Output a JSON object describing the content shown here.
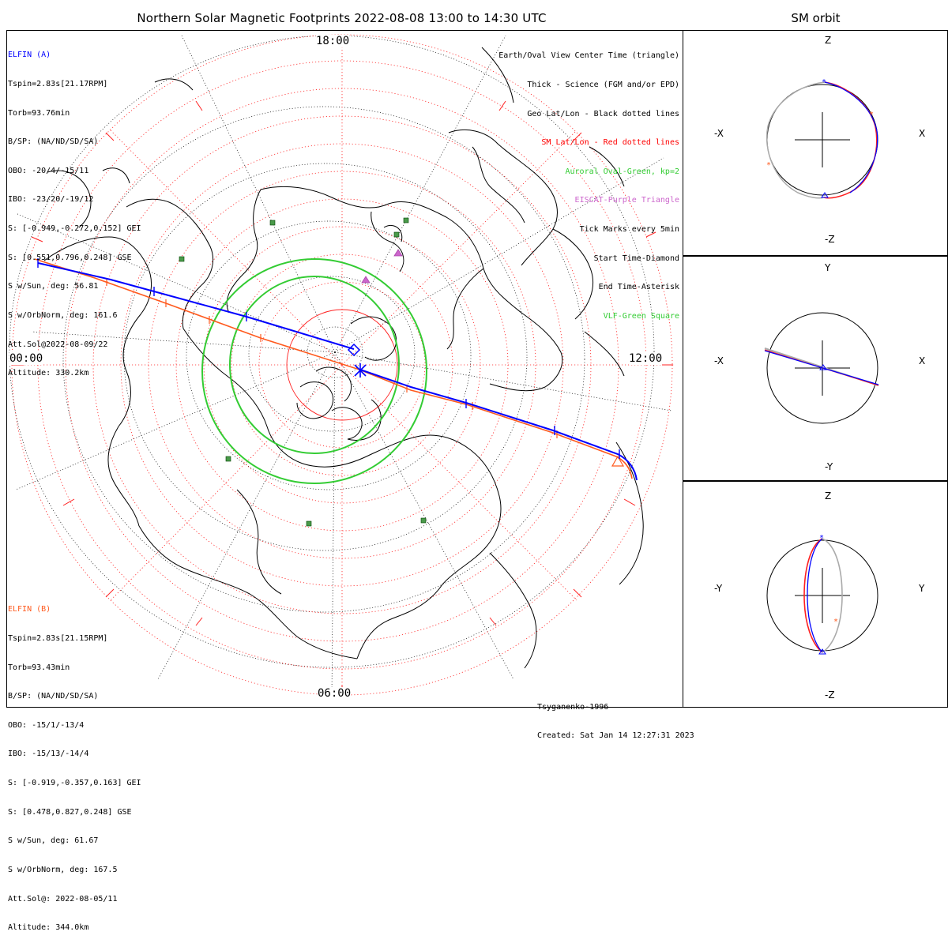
{
  "title": "Northern Solar Magnetic Footprints 2022-08-08 13:00 to 14:30 UTC",
  "orbit_title": "SM orbit",
  "time_labels": {
    "top": "18:00",
    "left": "00:00",
    "right": "12:00",
    "bottom": "06:00"
  },
  "elfin_a": {
    "name": "ELFIN (A)",
    "color": "#0000ff",
    "lines": [
      "Tspin=2.83s[21.17RPM]",
      "Torb=93.76min",
      "B/SP: (NA/ND/SD/SA)",
      "OBO: -20/4/-15/11",
      "IBO: -23/20/-19/12",
      "S: [-0.949,-0.272,0.152] GEI",
      "S: [0.551,0.796,0.248] GSE",
      "S w/Sun, deg: 56.81",
      "S w/OrbNorm, deg: 161.6",
      "Att.Sol@2022-08-09/22",
      "Altitude: 330.2km"
    ]
  },
  "elfin_b": {
    "name": "ELFIN (B)",
    "color": "#ff5a1e",
    "lines": [
      "Tspin=2.83s[21.15RPM]",
      "Torb=93.43min",
      "B/SP: (NA/ND/SD/SA)",
      "OBO: -15/1/-13/4",
      "IBO: -15/13/-14/4",
      "S: [-0.919,-0.357,0.163] GEI",
      "S: [0.478,0.827,0.248] GSE",
      "S w/Sun, deg: 61.67",
      "S w/OrbNorm, deg: 167.5",
      "Att.Sol@: 2022-08-05/11",
      "Altitude: 344.0km"
    ]
  },
  "legend": [
    {
      "text": "Earth/Oval View Center Time (triangle)",
      "color": "#000000"
    },
    {
      "text": "Thick - Science (FGM and/or EPD)",
      "color": "#000000"
    },
    {
      "text": "Geo Lat/Lon - Black dotted lines",
      "color": "#000000"
    },
    {
      "text": "SM Lat/Lon - Red dotted lines",
      "color": "#ff0000"
    },
    {
      "text": "Auroral Oval-Green, kp=2",
      "color": "#33cc33"
    },
    {
      "text": "EISCAT-Purple Triangle",
      "color": "#cc66cc"
    },
    {
      "text": "Tick Marks every 5min",
      "color": "#000000"
    },
    {
      "text": "Start Time-Diamond",
      "color": "#000000"
    },
    {
      "text": "End Time-Asterisk",
      "color": "#000000"
    },
    {
      "text": "VLF-Green Square",
      "color": "#33cc33"
    }
  ],
  "credits": {
    "model": "Tsyganenko-1996",
    "created": "Created: Sat Jan 14 12:27:31 2023"
  },
  "panels": [
    {
      "top": "Z",
      "bottom": "-Z",
      "left": "-X",
      "right": "X"
    },
    {
      "top": "Y",
      "bottom": "-Y",
      "left": "-X",
      "right": "X"
    },
    {
      "top": "Z",
      "bottom": "-Z",
      "left": "-Y",
      "right": "Y"
    }
  ]
}
